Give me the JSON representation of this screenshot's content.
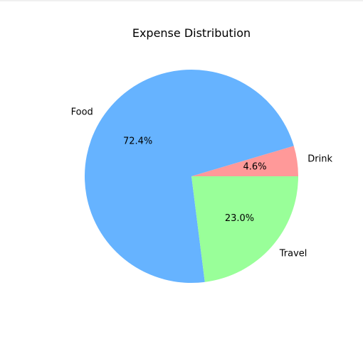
{
  "chart_data": {
    "type": "pie",
    "title": "Expense Distribution",
    "labels": [
      "Drink",
      "Food",
      "Travel"
    ],
    "values": [
      4.6,
      72.4,
      23.0
    ],
    "percent_labels": [
      "4.6%",
      "72.4%",
      "23.0%"
    ],
    "colors": [
      "#ff9999",
      "#66b3ff",
      "#99ff99"
    ],
    "start_angle_deg": 0,
    "direction": "counterclockwise"
  }
}
